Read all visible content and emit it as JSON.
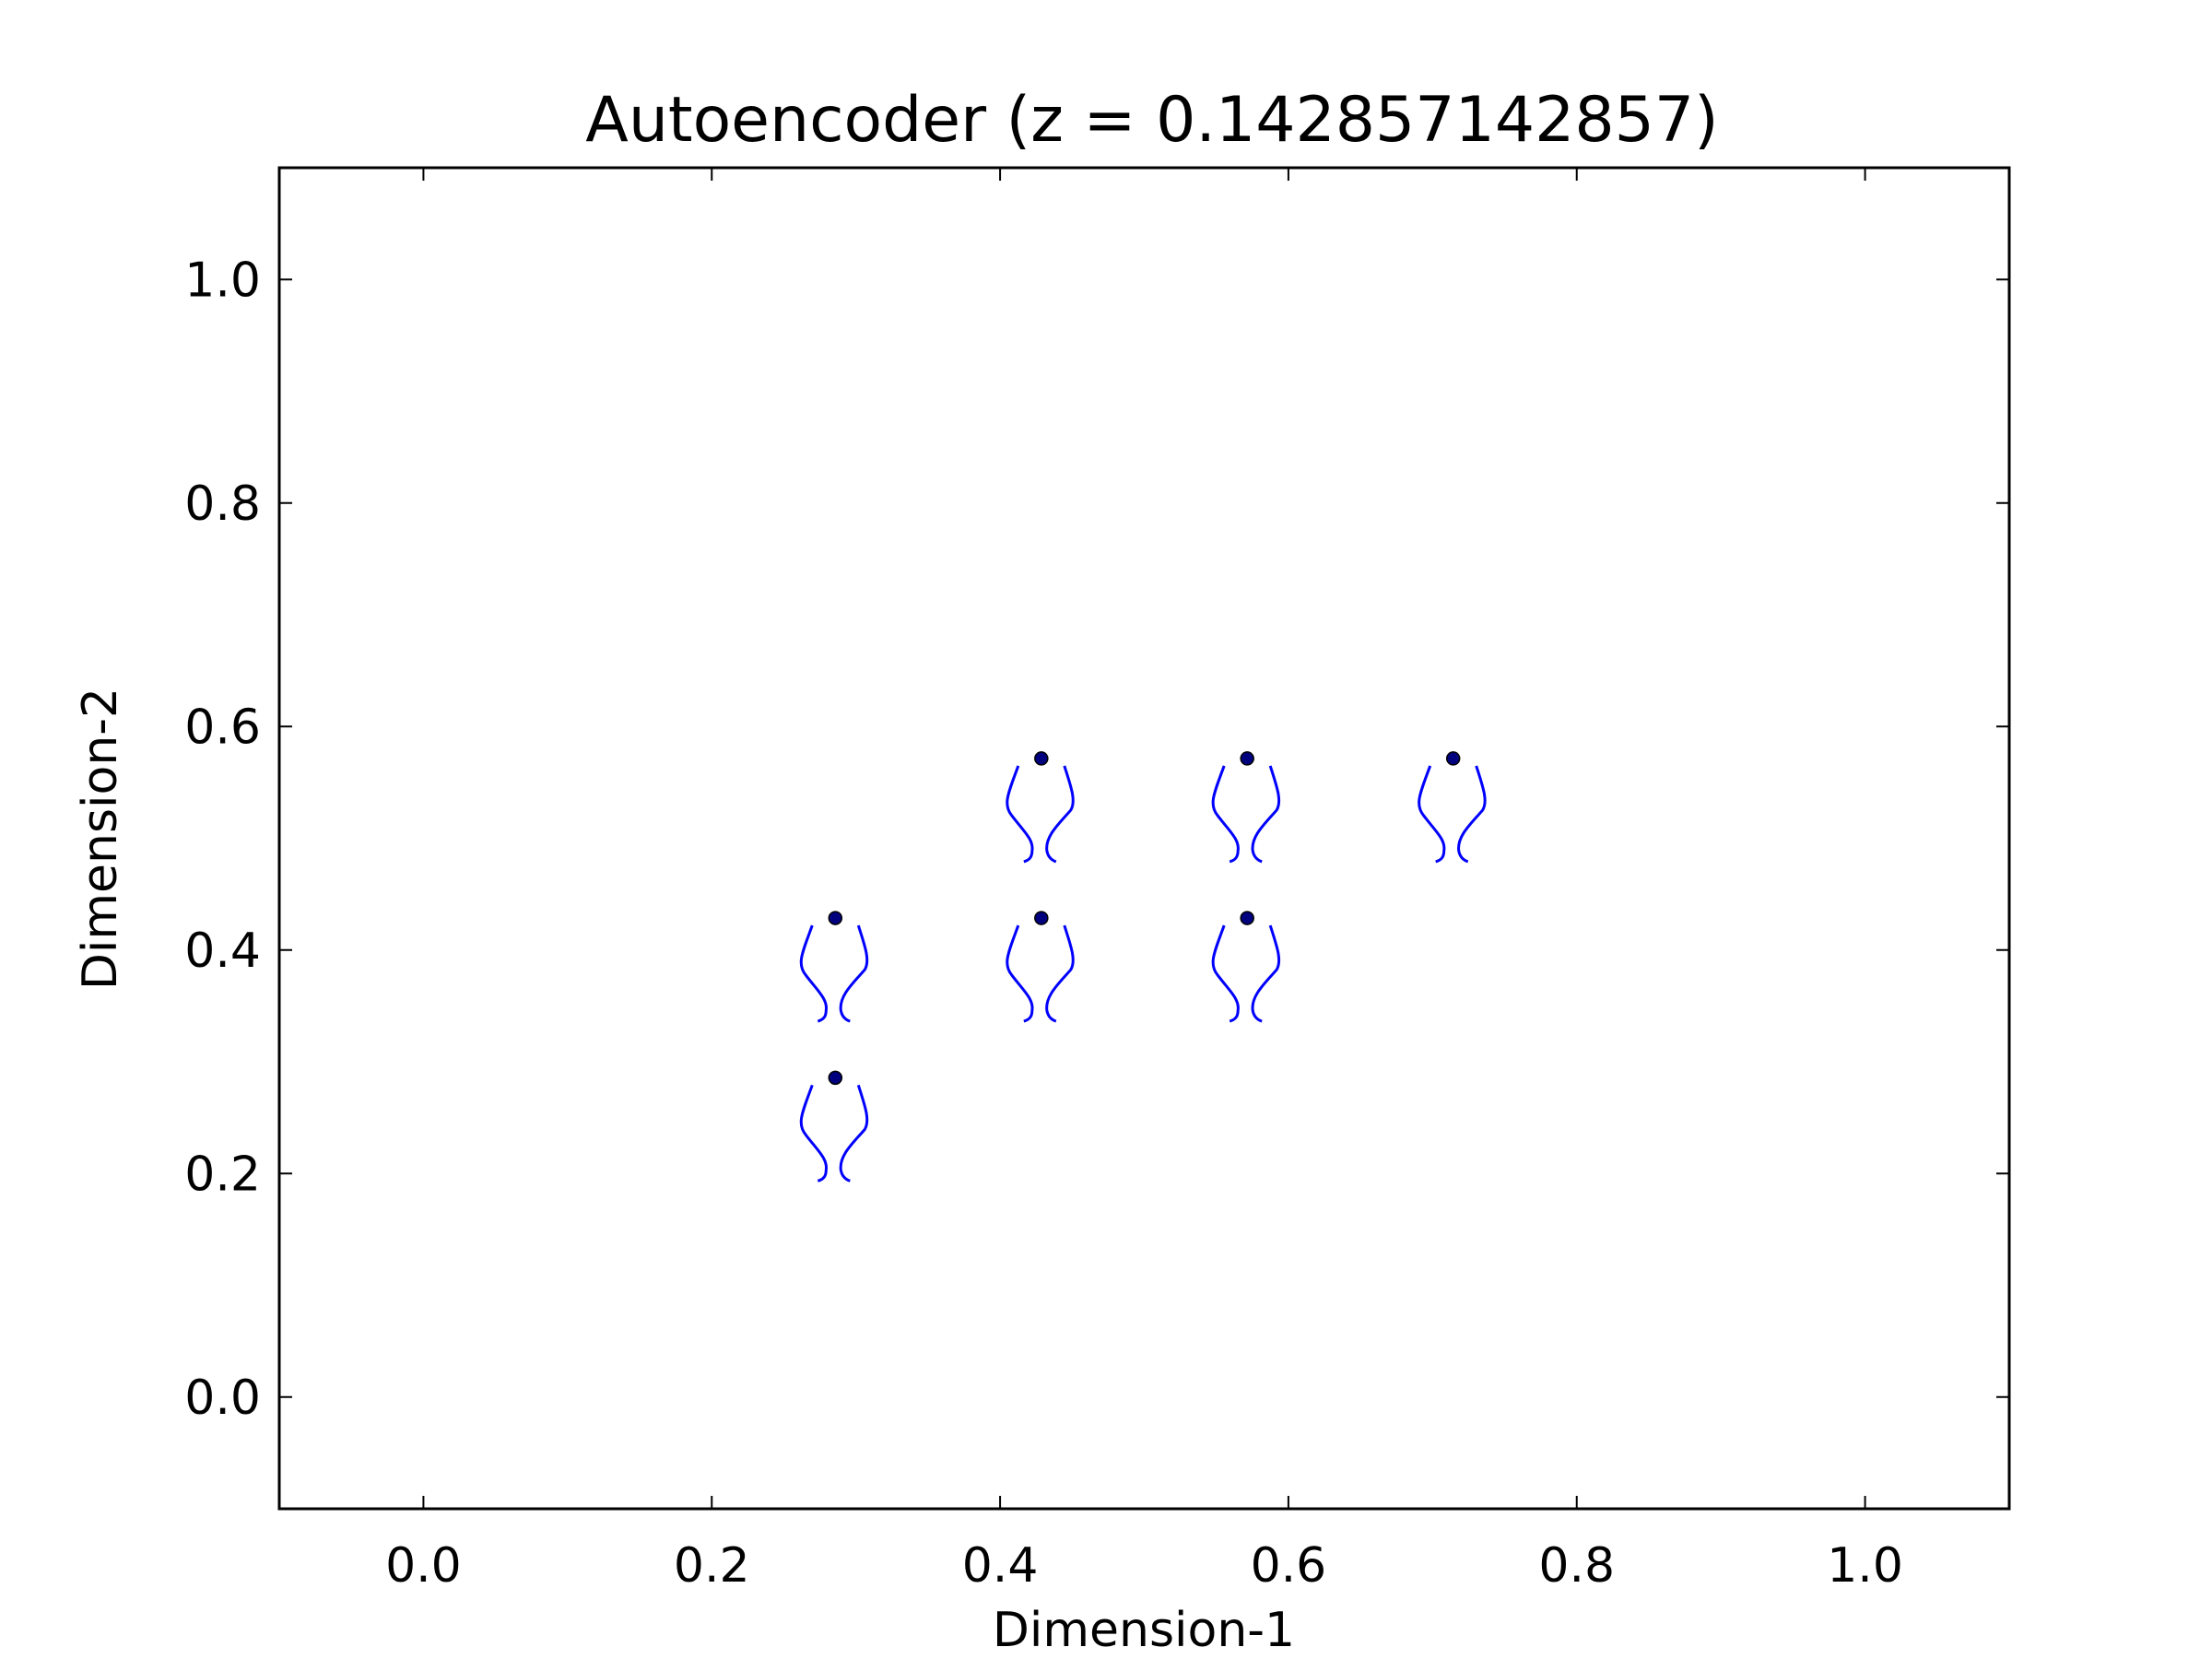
{
  "chart_data": {
    "type": "scatter",
    "title": "Autoencoder (z = 0.142857142857)",
    "xlabel": "Dimension-1",
    "ylabel": "Dimension-2",
    "xlim": [
      -0.1,
      1.1
    ],
    "ylim": [
      -0.1,
      1.1
    ],
    "xticks": [
      0.0,
      0.2,
      0.4,
      0.6,
      0.8,
      1.0
    ],
    "yticks": [
      0.0,
      0.2,
      0.4,
      0.6,
      0.8,
      1.0
    ],
    "xtick_labels": [
      "0.0",
      "0.2",
      "0.4",
      "0.6",
      "0.8",
      "1.0"
    ],
    "ytick_labels": [
      "0.0",
      "0.2",
      "0.4",
      "0.6",
      "0.8",
      "1.0"
    ],
    "grid": false,
    "legend": false,
    "point_color": "#00007f",
    "glyph_color": "#0000ff",
    "points": [
      {
        "x": 0.2857,
        "y": 0.2857
      },
      {
        "x": 0.2857,
        "y": 0.4286
      },
      {
        "x": 0.4286,
        "y": 0.4286
      },
      {
        "x": 0.5714,
        "y": 0.4286
      },
      {
        "x": 0.4286,
        "y": 0.5714
      },
      {
        "x": 0.5714,
        "y": 0.5714
      },
      {
        "x": 0.7143,
        "y": 0.5714
      }
    ]
  }
}
